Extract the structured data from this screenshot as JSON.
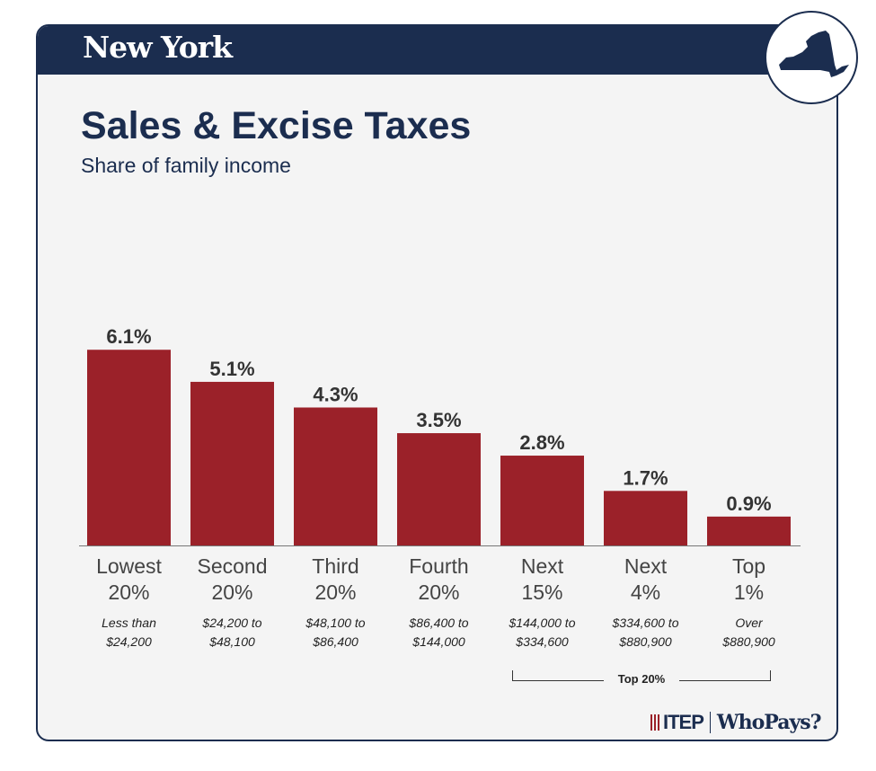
{
  "header": {
    "state": "New York"
  },
  "logo": {
    "itep": "ITEP",
    "whopays": "WhoPays?"
  },
  "colors": {
    "navy": "#1b2d4f",
    "bar": "#9b2129"
  },
  "chart_data": {
    "type": "bar",
    "title": "Sales & Excise Taxes",
    "subtitle": "Share of family income",
    "categories": [
      "Lowest 20%",
      "Second 20%",
      "Third 20%",
      "Fourth 20%",
      "Next 15%",
      "Next 4%",
      "Top 1%"
    ],
    "category_lines": [
      [
        "Lowest",
        "20%"
      ],
      [
        "Second",
        "20%"
      ],
      [
        "Third",
        "20%"
      ],
      [
        "Fourth",
        "20%"
      ],
      [
        "Next",
        "15%"
      ],
      [
        "Next",
        "4%"
      ],
      [
        "Top",
        "1%"
      ]
    ],
    "income_ranges": [
      [
        "Less than",
        "$24,200"
      ],
      [
        "$24,200 to",
        "$48,100"
      ],
      [
        "$48,100 to",
        "$86,400"
      ],
      [
        "$86,400 to",
        "$144,000"
      ],
      [
        "$144,000 to",
        "$334,600"
      ],
      [
        "$334,600 to",
        "$880,900"
      ],
      [
        "Over",
        "$880,900"
      ]
    ],
    "values": [
      6.1,
      5.1,
      4.3,
      3.5,
      2.8,
      1.7,
      0.9
    ],
    "value_labels": [
      "6.1%",
      "5.1%",
      "4.3%",
      "3.5%",
      "2.8%",
      "1.7%",
      "0.9%"
    ],
    "group_label": "Top 20%",
    "grid": false,
    "legend": "none"
  }
}
